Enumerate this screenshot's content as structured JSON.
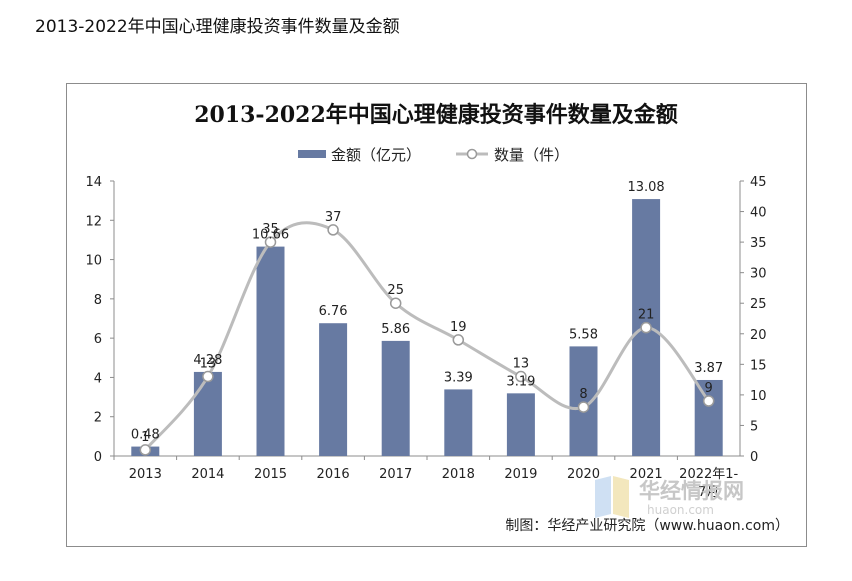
{
  "page_heading": "2013-2022年中国心理健康投资事件数量及金额",
  "credit": "制图：华经产业研究院（www.huaon.com）",
  "watermark": {
    "name": "华经情报网",
    "domain": "huaon.com"
  },
  "colors": {
    "bar": "#677aa2",
    "line": "#bcbcbc",
    "marker_fill": "#ffffff",
    "marker_stroke": "#9a9a9a"
  },
  "chart_data": {
    "type": "bar",
    "title": "2013-2022年中国心理健康投资事件数量及金额",
    "categories": [
      "2013",
      "2014",
      "2015",
      "2016",
      "2017",
      "2018",
      "2019",
      "2020",
      "2021",
      "2022年1-7月"
    ],
    "series": [
      {
        "name": "金额（亿元）",
        "type": "bar",
        "axis": "left",
        "values": [
          0.48,
          4.28,
          10.66,
          6.76,
          5.86,
          3.39,
          3.19,
          5.58,
          13.08,
          3.87
        ]
      },
      {
        "name": "数量（件）",
        "type": "line",
        "axis": "right",
        "smooth": true,
        "values": [
          1,
          13,
          35,
          37,
          25,
          19,
          13,
          8,
          21,
          9
        ]
      }
    ],
    "left_axis": {
      "ylim": [
        0,
        14
      ],
      "ticks": [
        0,
        2,
        4,
        6,
        8,
        10,
        12,
        14
      ]
    },
    "right_axis": {
      "ylim": [
        0,
        45
      ],
      "ticks": [
        0,
        5,
        10,
        15,
        20,
        25,
        30,
        35,
        40,
        45
      ]
    },
    "legend": "top-center",
    "grid": false
  }
}
